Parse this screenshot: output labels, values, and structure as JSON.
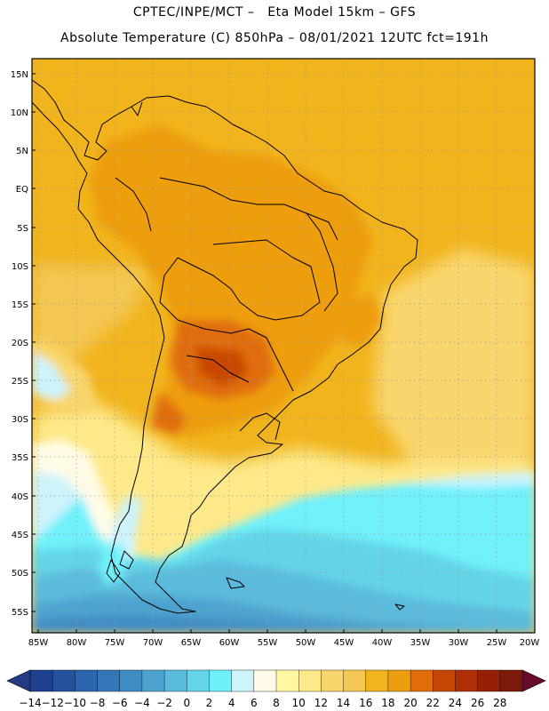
{
  "header": {
    "line1": "CPTEC/INPE/MCT –   Eta Model 15km – GFS",
    "line2": "Absolute Temperature (C) 850hPa – 08/01/2021 12UTC fct=191h"
  },
  "map": {
    "lat_labels": [
      "15N",
      "10N",
      "5N",
      "EQ",
      "5S",
      "10S",
      "15S",
      "20S",
      "25S",
      "30S",
      "35S",
      "40S",
      "45S",
      "50S",
      "55S"
    ],
    "lon_labels": [
      "85W",
      "80W",
      "75W",
      "70W",
      "65W",
      "60W",
      "55W",
      "50W",
      "45W",
      "40W",
      "35W",
      "30W",
      "25W",
      "20W"
    ]
  },
  "colorbar": {
    "labels": [
      "-14",
      "-12",
      "-10",
      "-8",
      "-6",
      "-4",
      "-2",
      "0",
      "2",
      "4",
      "6",
      "8",
      "10",
      "12",
      "14",
      "16",
      "18",
      "20",
      "22",
      "24",
      "26",
      "28"
    ],
    "colors": [
      "#1f3f8f",
      "#25529f",
      "#2c64ad",
      "#3477b8",
      "#3f8bc4",
      "#4da3cf",
      "#5bbbdc",
      "#64d4e8",
      "#6ff1fb",
      "#cdf3fb",
      "#fffbe6",
      "#fff7a1",
      "#fde98a",
      "#f9d66d",
      "#f4c752",
      "#f1b41d",
      "#ee9d10",
      "#e06d0a",
      "#c94705",
      "#b02f06",
      "#962006",
      "#7a1a0a"
    ],
    "left_arrow_color": "#253a85",
    "right_arrow_color": "#6a0a2a"
  }
}
